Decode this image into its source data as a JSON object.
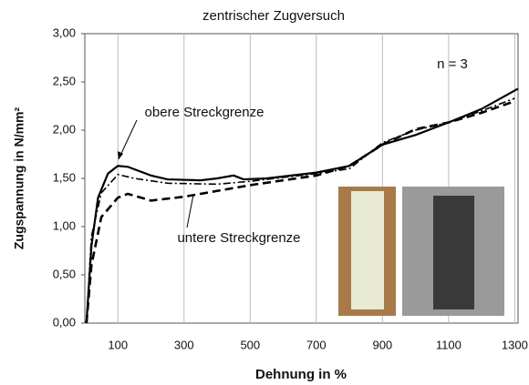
{
  "chart_data": {
    "type": "line",
    "title": "zentrischer Zugversuch",
    "xlabel": "Dehnung in %",
    "ylabel": "Zugspannung in N/mm²",
    "annotations": [
      "n = 3",
      "obere Streckgrenze",
      "untere Streckgrenze"
    ],
    "xlim": [
      0,
      1310
    ],
    "ylim": [
      0,
      3
    ],
    "xticks": [
      100,
      300,
      500,
      700,
      900,
      1100,
      1300
    ],
    "yticks": [
      {
        "value": 0,
        "label": "0,00"
      },
      {
        "value": 0.5,
        "label": "0,50"
      },
      {
        "value": 1,
        "label": "1,00"
      },
      {
        "value": 1.5,
        "label": "1,50"
      },
      {
        "value": 2,
        "label": "2,00"
      },
      {
        "value": 2.5,
        "label": "2,50"
      },
      {
        "value": 3,
        "label": "3,00"
      }
    ],
    "grid": "x",
    "series": [
      {
        "color": "#000000",
        "dash": "solid",
        "x": [
          5,
          20,
          40,
          70,
          100,
          130,
          200,
          250,
          350,
          400,
          450,
          480,
          550,
          700,
          800,
          900,
          1000,
          1100,
          1200,
          1310
        ],
        "values": [
          0,
          0.8,
          1.3,
          1.55,
          1.63,
          1.62,
          1.53,
          1.49,
          1.48,
          1.5,
          1.53,
          1.49,
          1.5,
          1.56,
          1.63,
          1.85,
          1.95,
          2.08,
          2.22,
          2.43
        ]
      },
      {
        "color": "#000000",
        "dash": "dashdot",
        "x": [
          5,
          20,
          50,
          100,
          150,
          250,
          400,
          500,
          700,
          800,
          900,
          1000,
          1100,
          1200,
          1300
        ],
        "values": [
          0,
          0.9,
          1.35,
          1.54,
          1.5,
          1.45,
          1.44,
          1.47,
          1.55,
          1.6,
          1.87,
          2.0,
          2.08,
          2.2,
          2.33
        ]
      },
      {
        "color": "#000000",
        "dash": "dashed",
        "x": [
          5,
          20,
          50,
          100,
          130,
          200,
          300,
          400,
          500,
          700,
          800,
          900,
          1000,
          1100,
          1200,
          1300
        ],
        "values": [
          0,
          0.6,
          1.1,
          1.3,
          1.34,
          1.27,
          1.31,
          1.37,
          1.43,
          1.53,
          1.63,
          1.85,
          2.01,
          2.08,
          2.18,
          2.3
        ]
      }
    ]
  }
}
